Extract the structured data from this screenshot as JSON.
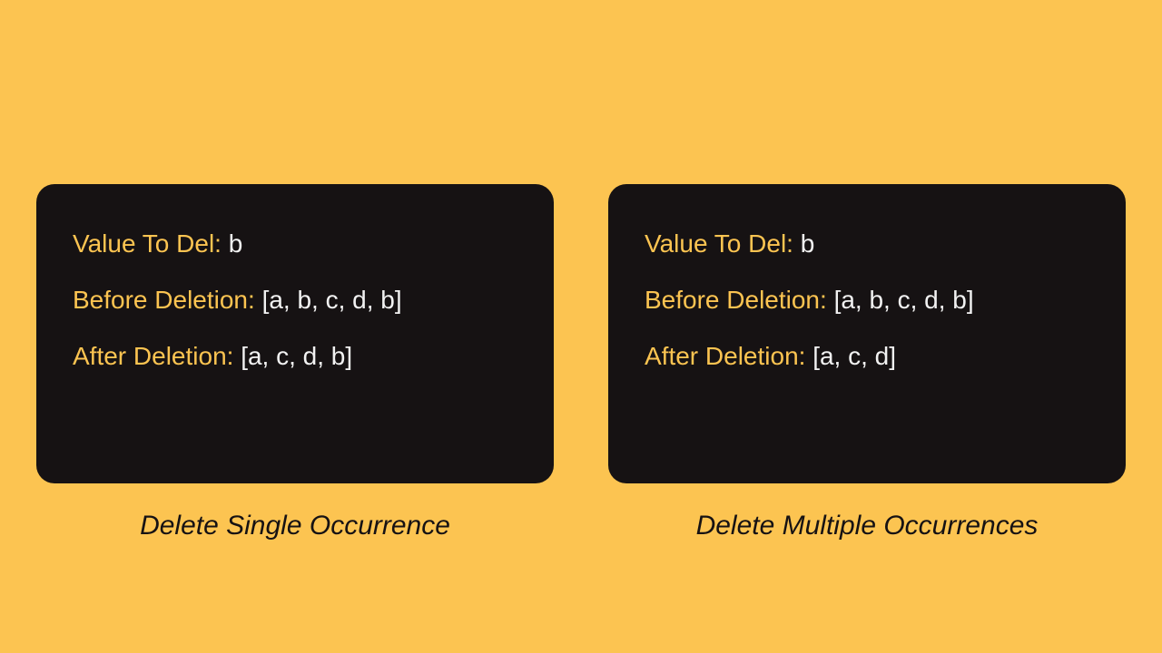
{
  "background_color": "#fcc451",
  "panel_background": "#161213",
  "label_color": "#fcc451",
  "value_color": "#f2f2f2",
  "caption_color": "#161213",
  "panels": [
    {
      "value_to_del_label": "Value To Del: ",
      "value_to_del_value": "b",
      "before_label": "Before Deletion: ",
      "before_value": "[a, b, c, d, b]",
      "after_label": "After Deletion: ",
      "after_value": "[a, c, d, b]",
      "caption": "Delete Single Occurrence"
    },
    {
      "value_to_del_label": "Value To Del: ",
      "value_to_del_value": "b",
      "before_label": "Before Deletion: ",
      "before_value": "[a, b, c, d, b]",
      "after_label": "After Deletion: ",
      "after_value": "[a, c, d]",
      "caption": "Delete Multiple Occurrences"
    }
  ]
}
